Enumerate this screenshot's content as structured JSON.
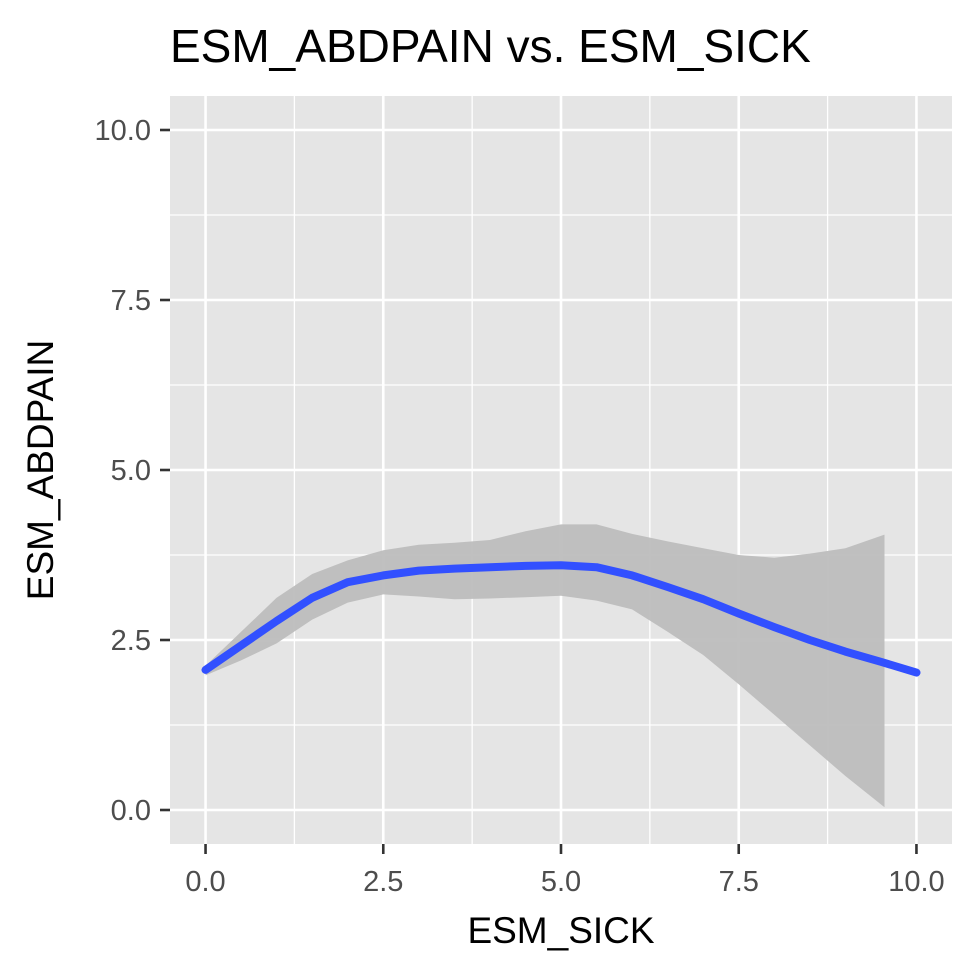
{
  "chart_data": {
    "type": "line",
    "title": "ESM_ABDPAIN vs. ESM_SICK",
    "xlabel": "ESM_SICK",
    "ylabel": "ESM_ABDPAIN",
    "xlim": [
      -0.5,
      10.5
    ],
    "ylim": [
      -0.5,
      10.5
    ],
    "x_ticks": [
      0.0,
      2.5,
      5.0,
      7.5,
      10.0
    ],
    "x_tick_labels": [
      "0.0",
      "2.5",
      "5.0",
      "7.5",
      "10.0"
    ],
    "y_ticks": [
      0.0,
      2.5,
      5.0,
      7.5,
      10.0
    ],
    "y_tick_labels": [
      "0.0",
      "2.5",
      "5.0",
      "7.5",
      "10.0"
    ],
    "x_minor": [
      1.25,
      3.75,
      6.25,
      8.75
    ],
    "y_minor": [
      1.25,
      3.75,
      6.25,
      8.75
    ],
    "grid": true,
    "colors": {
      "panel": "#e5e5e5",
      "grid": "#ffffff",
      "line": "#3250ff",
      "band": "#bdbdbd"
    },
    "series": [
      {
        "x": [
          0,
          0.5,
          1,
          1.5,
          2,
          2.5,
          3,
          3.5,
          4,
          4.5,
          5,
          5.5,
          6,
          6.5,
          7,
          7.5,
          8,
          8.5,
          9,
          9.5,
          10
        ],
        "y": [
          2.06,
          2.42,
          2.78,
          3.12,
          3.35,
          3.45,
          3.52,
          3.55,
          3.57,
          3.59,
          3.6,
          3.57,
          3.45,
          3.28,
          3.1,
          2.89,
          2.69,
          2.5,
          2.33,
          2.18,
          2.02
        ],
        "band_x": [
          0,
          0.5,
          1,
          1.5,
          2,
          2.5,
          3,
          3.5,
          4,
          4.5,
          5,
          5.5,
          6,
          6.5,
          7,
          7.5,
          8,
          8.5,
          9,
          9.55
        ],
        "band_low": [
          1.98,
          2.2,
          2.45,
          2.8,
          3.05,
          3.17,
          3.14,
          3.1,
          3.11,
          3.13,
          3.15,
          3.08,
          2.95,
          2.62,
          2.28,
          1.85,
          1.4,
          0.95,
          0.5,
          0.04
        ],
        "band_high": [
          2.12,
          2.62,
          3.12,
          3.47,
          3.67,
          3.82,
          3.9,
          3.93,
          3.97,
          4.1,
          4.2,
          4.2,
          4.06,
          3.95,
          3.85,
          3.75,
          3.71,
          3.77,
          3.85,
          4.05
        ]
      }
    ]
  }
}
